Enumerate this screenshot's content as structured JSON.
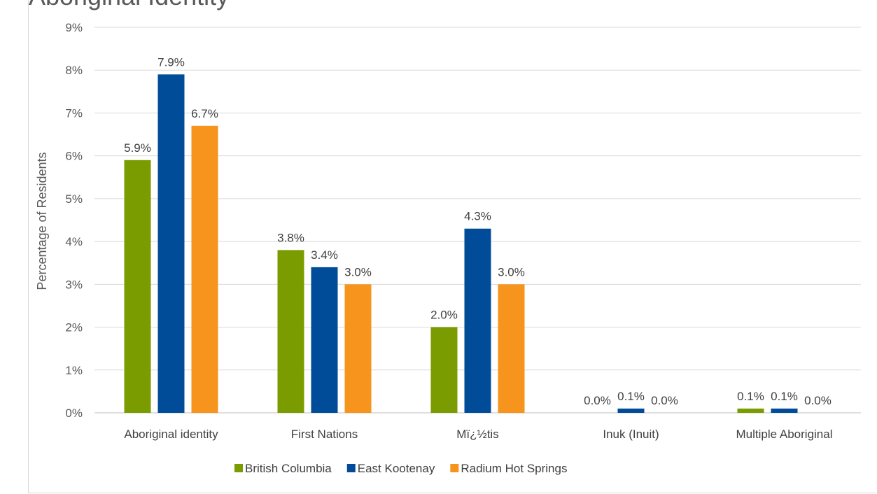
{
  "page": {
    "clipped_title": "Aboriginal Identity"
  },
  "chart_data": {
    "type": "bar",
    "title": "",
    "xlabel": "",
    "ylabel": "Percentage of Residents",
    "ylim": [
      0,
      9
    ],
    "yticks": [
      "0%",
      "1%",
      "2%",
      "3%",
      "4%",
      "5%",
      "6%",
      "7%",
      "8%",
      "9%"
    ],
    "grid": true,
    "legend_position": "bottom",
    "categories": [
      "Aboriginal identity",
      "First Nations",
      "Mï¿½tis",
      "Inuk (Inuit)",
      "Multiple Aboriginal"
    ],
    "series": [
      {
        "name": "British Columbia",
        "color": "#7a9c00",
        "values": [
          5.9,
          3.8,
          2.0,
          0.0,
          0.1
        ],
        "labels": [
          "5.9%",
          "3.8%",
          "2.0%",
          "0.0%",
          "0.1%"
        ]
      },
      {
        "name": "East Kootenay",
        "color": "#004c99",
        "values": [
          7.9,
          3.4,
          4.3,
          0.1,
          0.1
        ],
        "labels": [
          "7.9%",
          "3.4%",
          "4.3%",
          "0.1%",
          "0.1%"
        ]
      },
      {
        "name": "Radium Hot Springs",
        "color": "#f7941d",
        "values": [
          6.7,
          3.0,
          3.0,
          0.0,
          0.0
        ],
        "labels": [
          "6.7%",
          "3.0%",
          "3.0%",
          "0.0%",
          "0.0%"
        ]
      }
    ]
  }
}
